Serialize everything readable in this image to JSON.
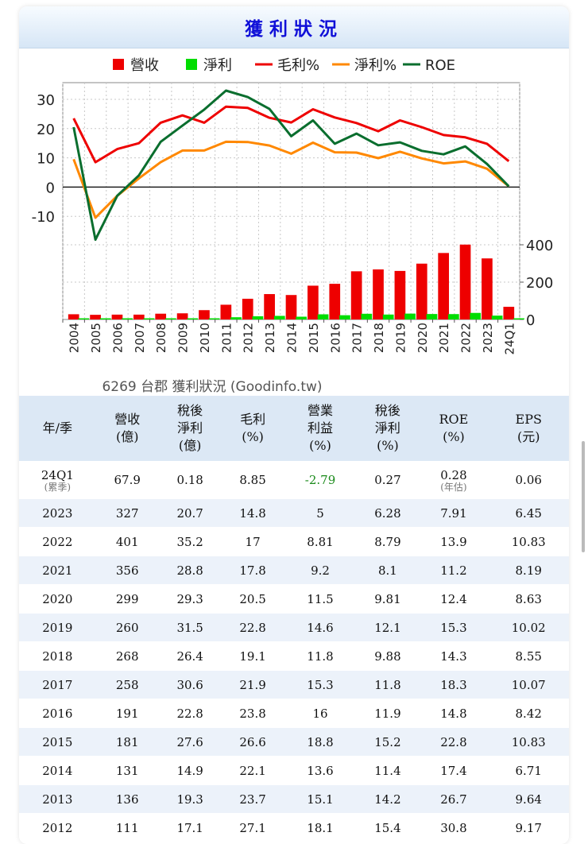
{
  "page": {
    "title": "獲利狀況"
  },
  "chart_data": {
    "type": "combo",
    "categories": [
      "2004",
      "2005",
      "2006",
      "2007",
      "2008",
      "2009",
      "2010",
      "2011",
      "2012",
      "2013",
      "2014",
      "2015",
      "2016",
      "2017",
      "2018",
      "2019",
      "2020",
      "2021",
      "2022",
      "2023",
      "24Q1"
    ],
    "legend": [
      {
        "label": "營收",
        "color": "#ee0000",
        "kind": "bar"
      },
      {
        "label": "淨利",
        "color": "#00dd00",
        "kind": "bar"
      },
      {
        "label": "毛利%",
        "color": "#ee0000",
        "kind": "line"
      },
      {
        "label": "淨利%",
        "color": "#ff8800",
        "kind": "line"
      },
      {
        "label": "ROE",
        "color": "#0a6e2e",
        "kind": "line"
      }
    ],
    "line_series": [
      {
        "name": "毛利%",
        "color": "#ee0000",
        "values": [
          23.5,
          8.5,
          13,
          15,
          22,
          24.5,
          22,
          27.5,
          27.1,
          23.7,
          22.1,
          26.6,
          23.8,
          21.9,
          19.1,
          22.8,
          20.5,
          17.8,
          17,
          14.8,
          8.85
        ]
      },
      {
        "name": "淨利%",
        "color": "#ff8800",
        "values": [
          9.5,
          -10.5,
          -3,
          3,
          8.5,
          12.5,
          12.5,
          15.5,
          15.4,
          14.2,
          11.4,
          15.2,
          11.9,
          11.8,
          9.88,
          12.1,
          9.81,
          8.1,
          8.79,
          6.28,
          0.27
        ]
      },
      {
        "name": "ROE",
        "color": "#0a6e2e",
        "values": [
          20.5,
          -18,
          -3,
          4,
          15.5,
          21,
          26.5,
          33,
          30.8,
          26.7,
          17.4,
          22.8,
          14.8,
          18.3,
          14.3,
          15.3,
          12.4,
          11.2,
          13.9,
          7.91,
          0.28
        ]
      }
    ],
    "bar_series": [
      {
        "name": "營收",
        "color": "#ee0000",
        "values": [
          28,
          25,
          26,
          26,
          31,
          33,
          50,
          79,
          111,
          136,
          131,
          181,
          191,
          258,
          268,
          260,
          299,
          356,
          401,
          327,
          67.9
        ]
      },
      {
        "name": "淨利",
        "color": "#00dd00",
        "values": [
          3,
          -2,
          -1,
          1,
          3,
          4,
          6,
          12,
          17.1,
          19.3,
          14.9,
          27.6,
          22.8,
          30.6,
          26.4,
          31.5,
          29.3,
          28.8,
          35.2,
          20.7,
          0.18
        ]
      }
    ],
    "y_left": {
      "range": [
        -15,
        33
      ],
      "ticks": [
        30,
        20,
        10,
        0,
        -10
      ]
    },
    "y_right": {
      "range": [
        0,
        470
      ],
      "ticks": [
        400,
        200,
        0
      ]
    },
    "caption": "6269 台郡 獲利狀況 (Goodinfo.tw)"
  },
  "table": {
    "headers": [
      [
        "年/季"
      ],
      [
        "營收",
        "(億)"
      ],
      [
        "稅後",
        "淨利",
        "(億)"
      ],
      [
        "毛利",
        "(%)"
      ],
      [
        "營業",
        "利益",
        "(%)"
      ],
      [
        "稅後",
        "淨利",
        "(%)"
      ],
      [
        "ROE",
        "(%)"
      ],
      [
        "EPS",
        "(元)"
      ]
    ],
    "first_row": {
      "period": "24Q1",
      "period_note": "(累季)",
      "revenue": "67.9",
      "net_income": "0.18",
      "gross_margin": "8.85",
      "op_margin": "-2.79",
      "net_margin": "0.27",
      "roe": "0.28",
      "roe_note": "(年估)",
      "eps": "0.06"
    },
    "rows": [
      [
        "2023",
        "327",
        "20.7",
        "14.8",
        "5",
        "6.28",
        "7.91",
        "6.45"
      ],
      [
        "2022",
        "401",
        "35.2",
        "17",
        "8.81",
        "8.79",
        "13.9",
        "10.83"
      ],
      [
        "2021",
        "356",
        "28.8",
        "17.8",
        "9.2",
        "8.1",
        "11.2",
        "8.19"
      ],
      [
        "2020",
        "299",
        "29.3",
        "20.5",
        "11.5",
        "9.81",
        "12.4",
        "8.63"
      ],
      [
        "2019",
        "260",
        "31.5",
        "22.8",
        "14.6",
        "12.1",
        "15.3",
        "10.02"
      ],
      [
        "2018",
        "268",
        "26.4",
        "19.1",
        "11.8",
        "9.88",
        "14.3",
        "8.55"
      ],
      [
        "2017",
        "258",
        "30.6",
        "21.9",
        "15.3",
        "11.8",
        "18.3",
        "10.07"
      ],
      [
        "2016",
        "191",
        "22.8",
        "23.8",
        "16",
        "11.9",
        "14.8",
        "8.42"
      ],
      [
        "2015",
        "181",
        "27.6",
        "26.6",
        "18.8",
        "15.2",
        "22.8",
        "10.83"
      ],
      [
        "2014",
        "131",
        "14.9",
        "22.1",
        "13.6",
        "11.4",
        "17.4",
        "6.71"
      ],
      [
        "2013",
        "136",
        "19.3",
        "23.7",
        "15.1",
        "14.2",
        "26.7",
        "9.64"
      ],
      [
        "2012",
        "111",
        "17.1",
        "27.1",
        "18.1",
        "15.4",
        "30.8",
        "9.17"
      ]
    ]
  }
}
